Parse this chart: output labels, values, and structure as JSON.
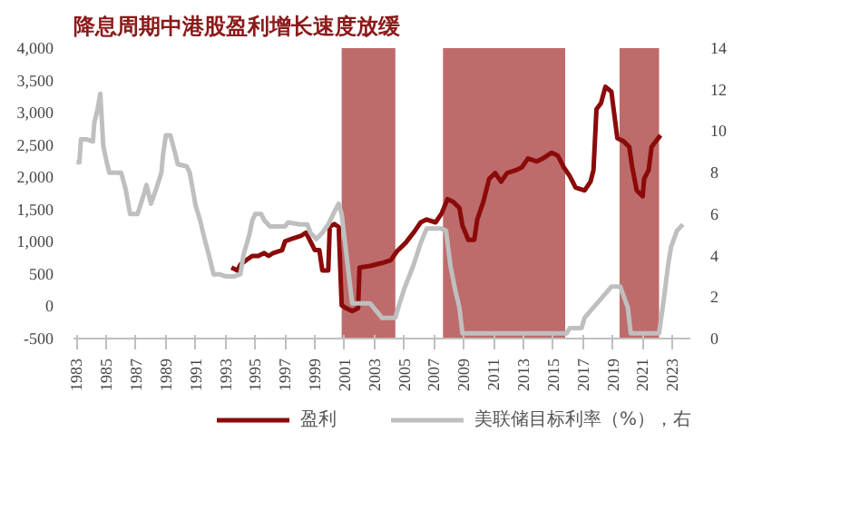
{
  "chart_data": {
    "type": "line",
    "title": "降息周期中港股盈利增长速度放缓",
    "xlim": [
      1982.8,
      2024.2
    ],
    "xticks": [
      1983,
      1985,
      1987,
      1989,
      1991,
      1993,
      1995,
      1997,
      1999,
      2001,
      2003,
      2005,
      2007,
      2009,
      2011,
      2013,
      2015,
      2017,
      2019,
      2021,
      2023
    ],
    "ylim": [
      -500,
      4000
    ],
    "yticks": [
      {
        "value": -500,
        "label": "-500"
      },
      0,
      500,
      {
        "value": 1000,
        "label": "1,000"
      },
      {
        "value": 1500,
        "label": "1,500"
      },
      {
        "value": 2000,
        "label": "2,000"
      },
      {
        "value": 2500,
        "label": "2,500"
      },
      {
        "value": 3000,
        "label": "3,000"
      },
      {
        "value": 3500,
        "label": "3,500"
      },
      {
        "value": 4000,
        "label": "4,000"
      }
    ],
    "y2lim": [
      0,
      14
    ],
    "y2ticks": [
      0,
      2,
      4,
      6,
      8,
      10,
      12,
      14
    ],
    "legend": "bottom",
    "grid": false,
    "bands": [
      {
        "axis": "x",
        "from": 2000.8,
        "to": 2004.4,
        "color": "#a83a3a"
      },
      {
        "axis": "x",
        "from": 2007.6,
        "to": 2015.8,
        "color": "#a83a3a"
      },
      {
        "axis": "x",
        "from": 2019.45,
        "to": 2022.1,
        "color": "#a83a3a"
      }
    ],
    "series": [
      {
        "name": "盈利",
        "color": "#8b0a0a",
        "x": [
          1993.4,
          1993.8,
          1994.0,
          1994.4,
          1994.8,
          1995.2,
          1995.6,
          1995.9,
          1996.2,
          1996.8,
          1997.0,
          1997.5,
          1998.1,
          1998.4,
          1998.7,
          1999.0,
          1999.3,
          1999.5,
          1999.9,
          2000.0,
          2000.3,
          2000.6,
          2000.8,
          2001.1,
          2001.5,
          2001.9,
          2002.0,
          2002.7,
          2003.5,
          2004.1,
          2004.5,
          2005.1,
          2005.7,
          2006.1,
          2006.5,
          2007.1,
          2007.5,
          2007.9,
          2008.3,
          2008.7,
          2008.9,
          2009.3,
          2009.7,
          2009.9,
          2010.3,
          2010.7,
          2011.1,
          2011.5,
          2011.9,
          2012.5,
          2012.9,
          2013.3,
          2013.9,
          2014.3,
          2014.9,
          2015.3,
          2015.7,
          2016.1,
          2016.5,
          2017.1,
          2017.5,
          2017.7,
          2017.9,
          2018.2,
          2018.5,
          2018.9,
          2019.3,
          2019.7,
          2020.1,
          2020.3,
          2020.6,
          2021.0,
          2021.1,
          2021.4,
          2021.6,
          2021.9,
          2022.2
        ],
        "values": [
          600,
          555,
          645,
          717,
          780,
          780,
          825,
          780,
          825,
          870,
          1006,
          1050,
          1096,
          1140,
          1006,
          870,
          870,
          555,
          555,
          1230,
          1275,
          1230,
          14,
          -30,
          -75,
          -30,
          600,
          625,
          670,
          715,
          850,
          985,
          1165,
          1300,
          1345,
          1300,
          1435,
          1660,
          1615,
          1525,
          1255,
          1030,
          1030,
          1345,
          1615,
          1975,
          2065,
          1930,
          2065,
          2110,
          2155,
          2290,
          2245,
          2290,
          2380,
          2335,
          2155,
          2020,
          1840,
          1795,
          1930,
          2110,
          3055,
          3145,
          3400,
          3325,
          2605,
          2560,
          2470,
          2155,
          1795,
          1705,
          1975,
          2110,
          2470,
          2560,
          2650
        ]
      },
      {
        "name": "美联储目标利率（%），右",
        "color": "#bfbfbf",
        "axis": "y2",
        "x": [
          1983.0,
          1983.2,
          1983.3,
          1983.7,
          1984.1,
          1984.2,
          1984.4,
          1984.6,
          1984.8,
          1985.0,
          1985.2,
          1986.0,
          1986.3,
          1986.6,
          1987.1,
          1987.5,
          1987.7,
          1988.0,
          1988.3,
          1988.7,
          1988.8,
          1989.0,
          1989.3,
          1989.6,
          1989.8,
          1990.4,
          1990.6,
          1991.0,
          1991.3,
          1991.6,
          1991.9,
          1992.2,
          1992.6,
          1993.0,
          1993.6,
          1994.0,
          1994.2,
          1994.4,
          1994.6,
          1994.8,
          1995.0,
          1995.4,
          1995.6,
          1996.0,
          1996.4,
          1997.0,
          1997.2,
          1998.0,
          1998.5,
          1998.7,
          1999.1,
          1999.5,
          1999.9,
          2000.3,
          2000.6,
          2000.8,
          2001.5,
          2002.7,
          2003.5,
          2004.4,
          2004.6,
          2005.0,
          2005.6,
          2006.1,
          2006.5,
          2007.5,
          2007.8,
          2008.1,
          2008.4,
          2008.7,
          2008.9,
          2015.9,
          2016.1,
          2016.9,
          2017.1,
          2017.7,
          2018.3,
          2018.9,
          2019.5,
          2019.7,
          2020.0,
          2020.2,
          2022.1,
          2022.4,
          2022.7,
          2022.9,
          2023.3,
          2023.7
        ],
        "values": [
          8.5,
          8.5,
          9.6,
          9.6,
          9.5,
          10.4,
          11.0,
          11.8,
          9.3,
          8.6,
          8.0,
          8.0,
          7.2,
          6.0,
          6.0,
          6.9,
          7.4,
          6.5,
          7.1,
          8.0,
          8.8,
          9.8,
          9.8,
          9.0,
          8.4,
          8.3,
          8.0,
          6.4,
          5.7,
          4.8,
          4.0,
          3.1,
          3.1,
          3.0,
          3.0,
          3.1,
          4.0,
          4.5,
          5.0,
          5.7,
          6.0,
          6.0,
          5.7,
          5.4,
          5.4,
          5.4,
          5.6,
          5.5,
          5.5,
          5.1,
          4.8,
          5.1,
          5.5,
          6.1,
          6.5,
          6.0,
          1.7,
          1.7,
          1.0,
          1.0,
          1.5,
          2.4,
          3.5,
          4.6,
          5.3,
          5.3,
          5.2,
          3.5,
          2.4,
          1.5,
          0.25,
          0.25,
          0.5,
          0.5,
          1.0,
          1.5,
          2.0,
          2.5,
          2.5,
          2.1,
          1.5,
          0.25,
          0.25,
          1.8,
          3.5,
          4.4,
          5.2,
          5.5
        ]
      }
    ]
  }
}
